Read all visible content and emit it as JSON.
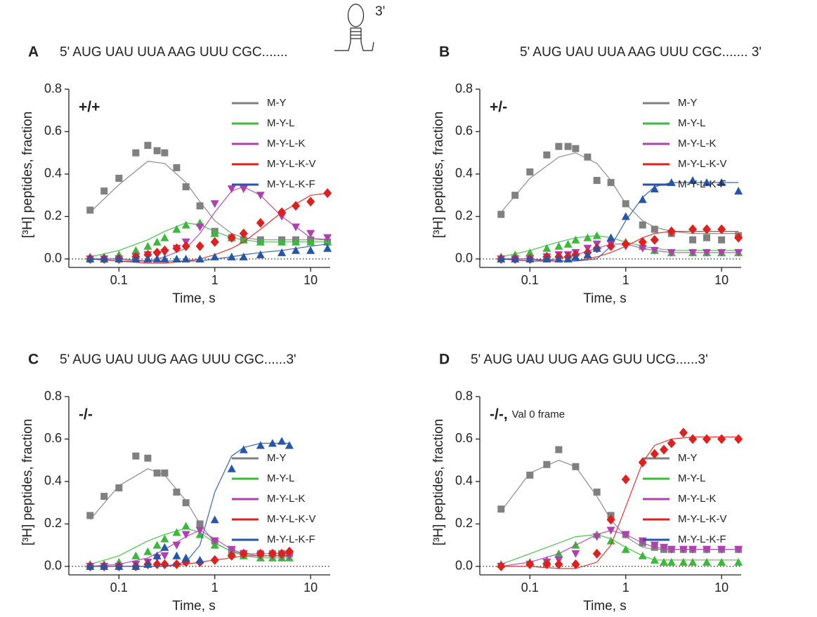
{
  "chart_data": [
    {
      "type": "scatter",
      "panel": "A",
      "sequence": "5' AUG UAU UUA AAG UUU CGC.......",
      "sequence_end": "3'",
      "annotation": "+/+",
      "xlabel": "Time, s",
      "ylabel": "[³H] peptides, fraction",
      "xscale": "log",
      "xlim": [
        0.03,
        16
      ],
      "xticks": [
        0.1,
        1,
        10
      ],
      "ylim": [
        -0.04,
        0.8
      ],
      "yticks": [
        {
          "value": 0,
          "label": "0.0"
        },
        0.2,
        0.4,
        0.6,
        0.8
      ],
      "legend": "upper right",
      "zero_line": true,
      "x": [
        0.05,
        0.07,
        0.1,
        0.15,
        0.2,
        0.25,
        0.3,
        0.4,
        0.5,
        0.7,
        1,
        1.5,
        2,
        3,
        5,
        7,
        10,
        15
      ],
      "fit_x": [
        0.05,
        0.1,
        0.2,
        0.3,
        0.5,
        0.7,
        1,
        1.5,
        2,
        3,
        5,
        10,
        15
      ],
      "series": [
        {
          "name": "M-Y",
          "color": "#808080",
          "marker": "square",
          "values": [
            0.23,
            0.32,
            0.38,
            0.5,
            0.535,
            0.51,
            0.5,
            0.43,
            0.34,
            0.25,
            0.13,
            0.1,
            0.09,
            0.09,
            0.09,
            0.09,
            0.09,
            0.08
          ],
          "fit": [
            0.22,
            0.35,
            0.46,
            0.45,
            0.36,
            0.27,
            0.18,
            0.12,
            0.1,
            0.09,
            0.09,
            0.09,
            0.09
          ]
        },
        {
          "name": "M-Y-L",
          "color": "#3cb83c",
          "marker": "triangle-up",
          "values": [
            0.01,
            0.01,
            0.02,
            0.04,
            0.06,
            0.08,
            0.1,
            0.14,
            0.16,
            0.17,
            0.12,
            0.1,
            0.09,
            0.08,
            0.08,
            0.08,
            0.08,
            0.08
          ],
          "fit": [
            0.01,
            0.04,
            0.09,
            0.13,
            0.17,
            0.16,
            0.13,
            0.1,
            0.09,
            0.08,
            0.08,
            0.08,
            0.08
          ]
        },
        {
          "name": "M-Y-L-K",
          "color": "#b040b0",
          "marker": "triangle-down",
          "values": [
            0,
            0,
            0,
            0.01,
            0.02,
            0.02,
            0.03,
            0.05,
            0.08,
            0.15,
            0.26,
            0.33,
            0.33,
            0.3,
            0.2,
            0.15,
            0.12,
            0.1
          ],
          "fit": [
            0,
            -0.01,
            -0.01,
            0.01,
            0.05,
            0.12,
            0.22,
            0.32,
            0.34,
            0.3,
            0.2,
            0.1,
            0.09
          ]
        },
        {
          "name": "M-Y-L-K-V",
          "color": "#e0201c",
          "marker": "diamond",
          "values": [
            0,
            0,
            0,
            0.01,
            0.02,
            0.03,
            0.04,
            0.05,
            0.06,
            0.06,
            0.08,
            0.1,
            0.12,
            0.17,
            0.22,
            0.25,
            0.27,
            0.31
          ],
          "fit": [
            0,
            -0.01,
            -0.02,
            -0.02,
            -0.01,
            0,
            0.02,
            0.05,
            0.08,
            0.14,
            0.22,
            0.3,
            0.31
          ]
        },
        {
          "name": "M-Y-L-K-F",
          "color": "#2656a8",
          "marker": "triangle-up",
          "values": [
            0,
            0,
            0,
            0,
            0,
            0,
            0,
            0,
            0,
            0,
            0.01,
            0.01,
            0.01,
            0.02,
            0.03,
            0.04,
            0.04,
            0.05
          ],
          "fit": [
            0,
            0,
            -0.01,
            -0.01,
            -0.01,
            -0.01,
            0,
            0.01,
            0.02,
            0.03,
            0.04,
            0.06,
            0.07
          ]
        }
      ]
    },
    {
      "type": "scatter",
      "panel": "B",
      "sequence": "5' AUG UAU UUA AAG UUU CGC....... 3'",
      "annotation": "+/-",
      "xlabel": "Time, s",
      "ylabel": "[³H] peptides, fraction",
      "xscale": "log",
      "xlim": [
        0.03,
        16
      ],
      "xticks": [
        0.1,
        1,
        10
      ],
      "ylim": [
        -0.04,
        0.8
      ],
      "yticks": [
        {
          "value": 0,
          "label": "0.0"
        },
        0.2,
        0.4,
        0.6,
        0.8
      ],
      "legend": "upper right",
      "zero_line": true,
      "x": [
        0.05,
        0.07,
        0.1,
        0.15,
        0.2,
        0.25,
        0.3,
        0.4,
        0.5,
        0.7,
        1,
        1.5,
        2,
        3,
        5,
        7,
        10,
        15
      ],
      "fit_x": [
        0.05,
        0.1,
        0.2,
        0.3,
        0.5,
        0.7,
        1,
        1.5,
        2,
        3,
        5,
        10,
        15
      ],
      "series": [
        {
          "name": "M-Y",
          "color": "#808080",
          "marker": "square",
          "values": [
            0.21,
            0.3,
            0.41,
            0.49,
            0.53,
            0.53,
            0.52,
            0.48,
            0.37,
            0.36,
            0.26,
            0.16,
            0.14,
            0.12,
            0.09,
            0.1,
            0.09,
            0.11
          ],
          "fit": [
            0.22,
            0.38,
            0.48,
            0.5,
            0.45,
            0.37,
            0.26,
            0.18,
            0.15,
            0.13,
            0.12,
            0.12,
            0.12
          ]
        },
        {
          "name": "M-Y-L",
          "color": "#3cb83c",
          "marker": "triangle-up",
          "values": [
            0.01,
            0.02,
            0.03,
            0.05,
            0.06,
            0.07,
            0.09,
            0.1,
            0.11,
            0.1,
            0.08,
            0.06,
            0.04,
            0.03,
            0.03,
            0.03,
            0.03,
            0.03
          ],
          "fit": [
            0.01,
            0.04,
            0.08,
            0.1,
            0.11,
            0.1,
            0.08,
            0.06,
            0.05,
            0.04,
            0.04,
            0.04,
            0.04
          ]
        },
        {
          "name": "M-Y-L-K",
          "color": "#b040b0",
          "marker": "triangle-down",
          "values": [
            0,
            0,
            0,
            0.01,
            0.02,
            0.02,
            0.03,
            0.05,
            0.07,
            0.07,
            0.06,
            0.05,
            0.04,
            0.03,
            0.03,
            0.03,
            0.03,
            0.03
          ],
          "fit": [
            0,
            -0.01,
            0,
            0.02,
            0.05,
            0.07,
            0.07,
            0.05,
            0.04,
            0.03,
            0.03,
            0.03,
            0.03
          ]
        },
        {
          "name": "M-Y-L-K-V",
          "color": "#e0201c",
          "marker": "diamond",
          "values": [
            0,
            0,
            0,
            0.01,
            0.01,
            0.01,
            0.02,
            0.03,
            0.05,
            0.06,
            0.07,
            0.08,
            0.09,
            0.13,
            0.14,
            0.14,
            0.14,
            0.1
          ],
          "fit": [
            0,
            -0.01,
            -0.01,
            -0.01,
            0.01,
            0.03,
            0.06,
            0.1,
            0.12,
            0.13,
            0.13,
            0.13,
            0.13
          ]
        },
        {
          "name": "M-Y-L-K-F",
          "color": "#2656a8",
          "marker": "triangle-up",
          "values": [
            0,
            0,
            0,
            0,
            0,
            0,
            0.01,
            0.02,
            0.05,
            0.1,
            0.2,
            0.28,
            0.33,
            0.36,
            0.37,
            0.36,
            0.36,
            0.32
          ],
          "fit": [
            0,
            0,
            -0.01,
            -0.01,
            0,
            0.06,
            0.18,
            0.29,
            0.34,
            0.36,
            0.36,
            0.36,
            0.36
          ]
        }
      ]
    },
    {
      "type": "scatter",
      "panel": "C",
      "sequence": "5' AUG UAU UUG AAG UUU CGC......3'",
      "annotation": "-/-",
      "xlabel": "Time, s",
      "ylabel": "[³H] peptides, fraction",
      "xscale": "log",
      "xlim": [
        0.03,
        16
      ],
      "xticks": [
        0.1,
        1,
        10
      ],
      "ylim": [
        -0.04,
        0.8
      ],
      "yticks": [
        {
          "value": 0,
          "label": "0.0"
        },
        0.2,
        0.4,
        0.6,
        0.8
      ],
      "legend": "center right",
      "zero_line": true,
      "x": [
        0.05,
        0.07,
        0.1,
        0.15,
        0.2,
        0.25,
        0.3,
        0.4,
        0.5,
        0.7,
        1,
        1.5,
        2,
        3,
        4,
        5,
        6
      ],
      "fit_x": [
        0.05,
        0.1,
        0.2,
        0.3,
        0.5,
        0.7,
        1,
        1.5,
        2,
        3,
        4,
        6
      ],
      "series": [
        {
          "name": "M-Y",
          "color": "#808080",
          "marker": "square",
          "values": [
            0.24,
            0.33,
            0.37,
            0.52,
            0.51,
            0.44,
            0.44,
            0.35,
            0.3,
            0.2,
            0.12,
            0.07,
            0.06,
            0.06,
            0.06,
            0.06,
            0.06
          ],
          "fit": [
            0.22,
            0.38,
            0.46,
            0.43,
            0.31,
            0.2,
            0.11,
            0.07,
            0.06,
            0.06,
            0.06,
            0.06
          ]
        },
        {
          "name": "M-Y-L",
          "color": "#3cb83c",
          "marker": "triangle-up",
          "values": [
            0.01,
            0.01,
            0.02,
            0.05,
            0.07,
            0.1,
            0.13,
            0.16,
            0.19,
            0.15,
            0.1,
            0.06,
            0.05,
            0.04,
            0.04,
            0.04,
            0.04
          ],
          "fit": [
            0.01,
            0.05,
            0.12,
            0.15,
            0.18,
            0.16,
            0.11,
            0.07,
            0.05,
            0.04,
            0.04,
            0.04
          ]
        },
        {
          "name": "M-Y-L-K",
          "color": "#b040b0",
          "marker": "triangle-down",
          "values": [
            0,
            0,
            0,
            0.01,
            0.02,
            0.04,
            0.05,
            0.1,
            0.15,
            0.17,
            0.12,
            0.08,
            0.06,
            0.05,
            0.05,
            0.05,
            0.05
          ],
          "fit": [
            0,
            0.01,
            0.04,
            0.08,
            0.14,
            0.17,
            0.13,
            0.08,
            0.06,
            0.05,
            0.05,
            0.05
          ]
        },
        {
          "name": "M-Y-L-K-V",
          "color": "#e0201c",
          "marker": "diamond",
          "values": [
            0,
            0,
            0,
            0,
            0.01,
            0.01,
            0.01,
            0.01,
            0.02,
            0.02,
            0.03,
            0.05,
            0.06,
            0.06,
            0.06,
            0.06,
            0.07
          ],
          "fit": [
            0,
            0,
            0,
            0,
            0.01,
            0.02,
            0.03,
            0.04,
            0.05,
            0.05,
            0.05,
            0.05
          ]
        },
        {
          "name": "M-Y-L-K-F",
          "color": "#2656a8",
          "marker": "triangle-up",
          "values": [
            0,
            0,
            0,
            0,
            0.01,
            0.05,
            0.09,
            0.05,
            0.04,
            0.03,
            0.22,
            0.46,
            0.55,
            0.57,
            0.58,
            0.59,
            0.57
          ],
          "fit": [
            0,
            0,
            0,
            0,
            0.02,
            0.1,
            0.35,
            0.52,
            0.56,
            0.58,
            0.58,
            0.58
          ]
        }
      ]
    },
    {
      "type": "scatter",
      "panel": "D",
      "sequence": "5' AUG UAU UUG AAG GUU UCG......3'",
      "annotation": "-/-,",
      "annotation_note": "Val 0 frame",
      "xlabel": "Time, s",
      "ylabel": "[³H] peptides, fraction",
      "xscale": "log",
      "xlim": [
        0.03,
        16
      ],
      "xticks": [
        0.1,
        1,
        10
      ],
      "ylim": [
        -0.04,
        0.8
      ],
      "yticks": [
        {
          "value": 0,
          "label": "0.0"
        },
        0.2,
        0.4,
        0.6,
        0.8
      ],
      "legend": "center right",
      "zero_line": true,
      "x": [
        0.05,
        0.1,
        0.15,
        0.2,
        0.3,
        0.5,
        0.7,
        1,
        1.5,
        2,
        2.5,
        3,
        4,
        5,
        7,
        10,
        15
      ],
      "fit_x": [
        0.05,
        0.1,
        0.2,
        0.3,
        0.5,
        0.7,
        1,
        1.5,
        2,
        3,
        5,
        10,
        15
      ],
      "series": [
        {
          "name": "M-Y",
          "color": "#808080",
          "marker": "square",
          "values": [
            0.27,
            0.43,
            0.48,
            0.55,
            0.47,
            0.35,
            0.24,
            0.15,
            0.11,
            0.09,
            0.08,
            0.08,
            0.08,
            0.08,
            0.08,
            0.08,
            0.08
          ],
          "fit": [
            0.26,
            0.44,
            0.5,
            0.47,
            0.33,
            0.22,
            0.14,
            0.09,
            0.08,
            0.08,
            0.08,
            0.08,
            0.08
          ]
        },
        {
          "name": "M-Y-L",
          "color": "#3cb83c",
          "marker": "triangle-up",
          "values": [
            0.01,
            0.02,
            0.03,
            0.06,
            0.1,
            0.15,
            0.12,
            0.08,
            0.05,
            0.03,
            0.02,
            0.02,
            0.02,
            0.02,
            0.02,
            0.02,
            0.02
          ],
          "fit": [
            0.01,
            0.06,
            0.11,
            0.14,
            0.15,
            0.13,
            0.09,
            0.05,
            0.03,
            0.03,
            0.03,
            0.03,
            0.03
          ]
        },
        {
          "name": "M-Y-L-K",
          "color": "#b040b0",
          "marker": "triangle-down",
          "values": [
            0,
            0.01,
            0.02,
            0.03,
            0.06,
            0.14,
            0.17,
            0.15,
            0.12,
            0.1,
            0.09,
            0.08,
            0.08,
            0.08,
            0.08,
            0.08,
            0.08
          ],
          "fit": [
            0,
            0.02,
            0.06,
            0.1,
            0.15,
            0.17,
            0.15,
            0.11,
            0.09,
            0.08,
            0.08,
            0.08,
            0.08
          ]
        },
        {
          "name": "M-Y-L-K-V",
          "color": "#e0201c",
          "marker": "diamond",
          "values": [
            0,
            0.01,
            0.01,
            0.01,
            0.01,
            0.06,
            0.22,
            0.41,
            0.49,
            0.53,
            0.55,
            0.58,
            0.63,
            0.6,
            0.6,
            0.6,
            0.6
          ],
          "fit": [
            0,
            0,
            -0.01,
            -0.01,
            0.02,
            0.1,
            0.28,
            0.49,
            0.57,
            0.6,
            0.61,
            0.61,
            0.61
          ]
        },
        {
          "name": "M-Y-L-K-F",
          "color": "#2656a8",
          "marker": "triangle-up",
          "values": [
            null,
            null,
            null,
            null,
            null,
            null,
            null,
            null,
            null,
            null,
            null,
            null,
            null,
            null,
            null,
            null,
            null
          ],
          "fit": [
            null,
            null,
            null,
            null,
            null,
            null,
            null,
            null,
            null,
            null,
            null,
            null,
            null
          ]
        }
      ]
    }
  ]
}
